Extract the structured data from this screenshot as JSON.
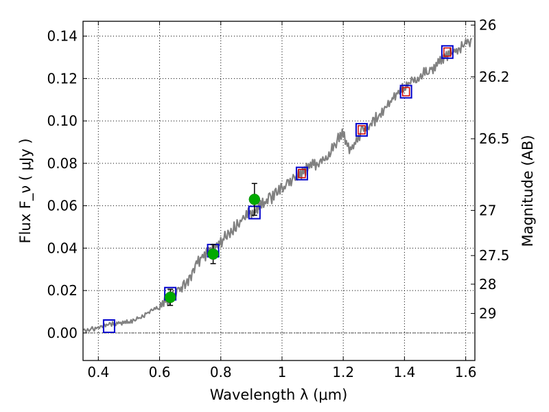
{
  "chart_data": {
    "type": "scatter",
    "xlabel": "Wavelength  λ (μm)",
    "ylabel": "Flux  F_ν  ( μJy )",
    "right_ylabel": "Magnitude (AB)",
    "xlim": [
      0.35,
      1.63
    ],
    "ylim": [
      -0.013,
      0.147
    ],
    "grid": true,
    "x_ticks": [
      0.4,
      0.6,
      0.8,
      1.0,
      1.2,
      1.4,
      1.6
    ],
    "x_tick_labels": [
      "0.4",
      "0.6",
      "0.8",
      "1",
      "1.2",
      "1.4",
      "1.6"
    ],
    "y_ticks": [
      0.0,
      0.02,
      0.04,
      0.06,
      0.08,
      0.1,
      0.12,
      0.14
    ],
    "y_tick_labels": [
      "0.00",
      "0.02",
      "0.04",
      "0.06",
      "0.08",
      "0.10",
      "0.12",
      "0.14"
    ],
    "right_ticks": [
      {
        "label": "26",
        "flux": 0.1452
      },
      {
        "label": "26.2",
        "flux": 0.1208
      },
      {
        "label": "26.5",
        "flux": 0.0916
      },
      {
        "label": "27",
        "flux": 0.0578
      },
      {
        "label": "27.5",
        "flux": 0.0365
      },
      {
        "label": "28",
        "flux": 0.023
      },
      {
        "label": "29",
        "flux": 0.0092
      }
    ],
    "colors": {
      "spectrum": "#808080",
      "blue_squares": "#0000cc",
      "red_squares": "#cc0000",
      "observed": "#00aa00",
      "errorbars": "#000000"
    },
    "spectrum": {
      "name": "model spectrum",
      "x": [
        0.35,
        0.38,
        0.4,
        0.42,
        0.44,
        0.46,
        0.48,
        0.5,
        0.52,
        0.54,
        0.56,
        0.58,
        0.6,
        0.62,
        0.64,
        0.66,
        0.68,
        0.7,
        0.72,
        0.74,
        0.76,
        0.78,
        0.8,
        0.82,
        0.84,
        0.86,
        0.88,
        0.9,
        0.92,
        0.94,
        0.96,
        0.98,
        1.0,
        1.02,
        1.04,
        1.06,
        1.08,
        1.1,
        1.12,
        1.14,
        1.16,
        1.18,
        1.2,
        1.22,
        1.24,
        1.26,
        1.28,
        1.3,
        1.32,
        1.34,
        1.36,
        1.38,
        1.4,
        1.42,
        1.44,
        1.46,
        1.48,
        1.5,
        1.52,
        1.54,
        1.56,
        1.58,
        1.6,
        1.62
      ],
      "y": [
        0.0015,
        0.0018,
        0.0025,
        0.0035,
        0.004,
        0.0045,
        0.0048,
        0.005,
        0.0065,
        0.0075,
        0.0095,
        0.011,
        0.012,
        0.0145,
        0.017,
        0.02,
        0.022,
        0.026,
        0.032,
        0.036,
        0.038,
        0.04,
        0.043,
        0.046,
        0.049,
        0.052,
        0.055,
        0.057,
        0.059,
        0.061,
        0.063,
        0.066,
        0.068,
        0.071,
        0.073,
        0.075,
        0.077,
        0.079,
        0.08,
        0.082,
        0.086,
        0.091,
        0.094,
        0.087,
        0.09,
        0.095,
        0.096,
        0.1,
        0.103,
        0.106,
        0.11,
        0.114,
        0.116,
        0.119,
        0.12,
        0.122,
        0.124,
        0.126,
        0.129,
        0.131,
        0.132,
        0.134,
        0.136,
        0.139
      ]
    },
    "series": [
      {
        "name": "blue squares",
        "x": [
          0.435,
          0.635,
          0.775,
          0.91,
          1.065,
          1.26,
          1.405,
          1.54
        ],
        "y": [
          0.0032,
          0.0185,
          0.0388,
          0.0568,
          0.0752,
          0.0958,
          0.1138,
          0.1325
        ]
      },
      {
        "name": "red squares",
        "x": [
          1.065,
          1.26,
          1.405,
          1.54
        ],
        "y": [
          0.0752,
          0.0958,
          0.1138,
          0.1325
        ]
      },
      {
        "name": "observed",
        "x": [
          0.635,
          0.775,
          0.91
        ],
        "y": [
          0.0168,
          0.0372,
          0.063
        ],
        "err": [
          0.0038,
          0.0045,
          0.0075
        ]
      }
    ]
  }
}
